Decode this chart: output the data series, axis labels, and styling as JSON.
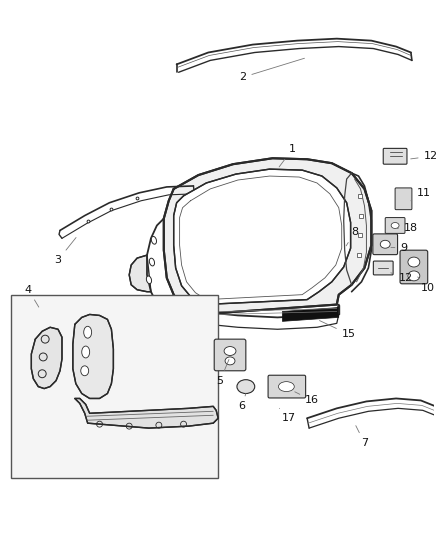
{
  "background": "#ffffff",
  "line_color": "#2a2a2a",
  "fig_width": 4.38,
  "fig_height": 5.33,
  "dpi": 100
}
